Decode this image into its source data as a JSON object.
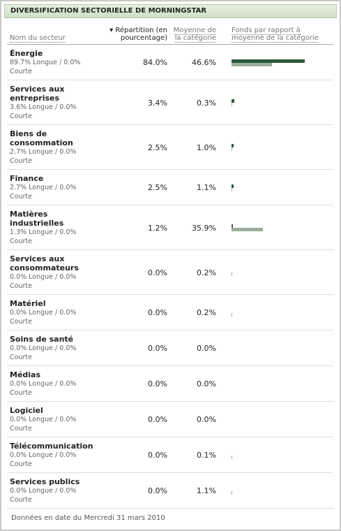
{
  "header": {
    "title": "DIVERSIFICATION SECTORIELLE DE MORNINGSTAR"
  },
  "columns": [
    "Nom du secteur",
    "Répartition (en pourcentage)",
    "Moyenne de la catégorie",
    "Fonds par rapport à moyenne de la catégorie"
  ],
  "rows": [
    {
      "name": "Énergie",
      "detail": "89.7% Longue / 0.0% Courte",
      "values": [
        84.0,
        46.6
      ],
      "value_labels": [
        "84.0%",
        "46.6%"
      ]
    },
    {
      "name": "Services aux entreprises",
      "detail": "3.6% Longue / 0.0% Courte",
      "values": [
        3.4,
        0.3
      ],
      "value_labels": [
        "3.4%",
        "0.3%"
      ]
    },
    {
      "name": "Biens de consommation",
      "detail": "2.7% Longue / 0.0% Courte",
      "values": [
        2.5,
        1.0
      ],
      "value_labels": [
        "2.5%",
        "1.0%"
      ]
    },
    {
      "name": "Finance",
      "detail": "2.7% Longue / 0.0% Courte",
      "values": [
        2.5,
        1.1
      ],
      "value_labels": [
        "2.5%",
        "1.1%"
      ]
    },
    {
      "name": "Matières industrielles",
      "detail": "1.3% Longue / 0.0% Courte",
      "values": [
        1.2,
        35.9
      ],
      "value_labels": [
        "1.2%",
        "35.9%"
      ]
    },
    {
      "name": "Services aux consommateurs",
      "detail": "0.0% Longue / 0.0% Courte",
      "values": [
        0.0,
        0.2
      ],
      "value_labels": [
        "0.0%",
        "0.2%"
      ]
    },
    {
      "name": "Matériel",
      "detail": "0.0% Longue / 0.0% Courte",
      "values": [
        0.0,
        0.2
      ],
      "value_labels": [
        "0.0%",
        "0.2%"
      ]
    },
    {
      "name": "Soins de santé",
      "detail": "0.0% Longue / 0.0% Courte",
      "values": [
        0.0,
        0.0
      ],
      "value_labels": [
        "0.0%",
        "0.0%"
      ]
    },
    {
      "name": "Médias",
      "detail": "0.0% Longue / 0.0% Courte",
      "values": [
        0.0,
        0.0
      ],
      "value_labels": [
        "0.0%",
        "0.0%"
      ]
    },
    {
      "name": "Logiciel",
      "detail": "0.0% Longue / 0.0% Courte",
      "values": [
        0.0,
        0.0
      ],
      "value_labels": [
        "0.0%",
        "0.0%"
      ]
    },
    {
      "name": "Télécommunication",
      "detail": "0.0% Longue / 0.0% Courte",
      "values": [
        0.0,
        0.1
      ],
      "value_labels": [
        "0.0%",
        "0.1%"
      ]
    },
    {
      "name": "Services publics",
      "detail": "0.0% Longue / 0.0% Courte",
      "values": [
        0.0,
        1.1
      ],
      "value_labels": [
        "0.0%",
        "1.1%"
      ]
    }
  ],
  "colors": {
    "fund": "#2d5a3a",
    "category": "#9aae9a"
  },
  "footer": "Données en date du Mercredi 31 mars 2010"
}
